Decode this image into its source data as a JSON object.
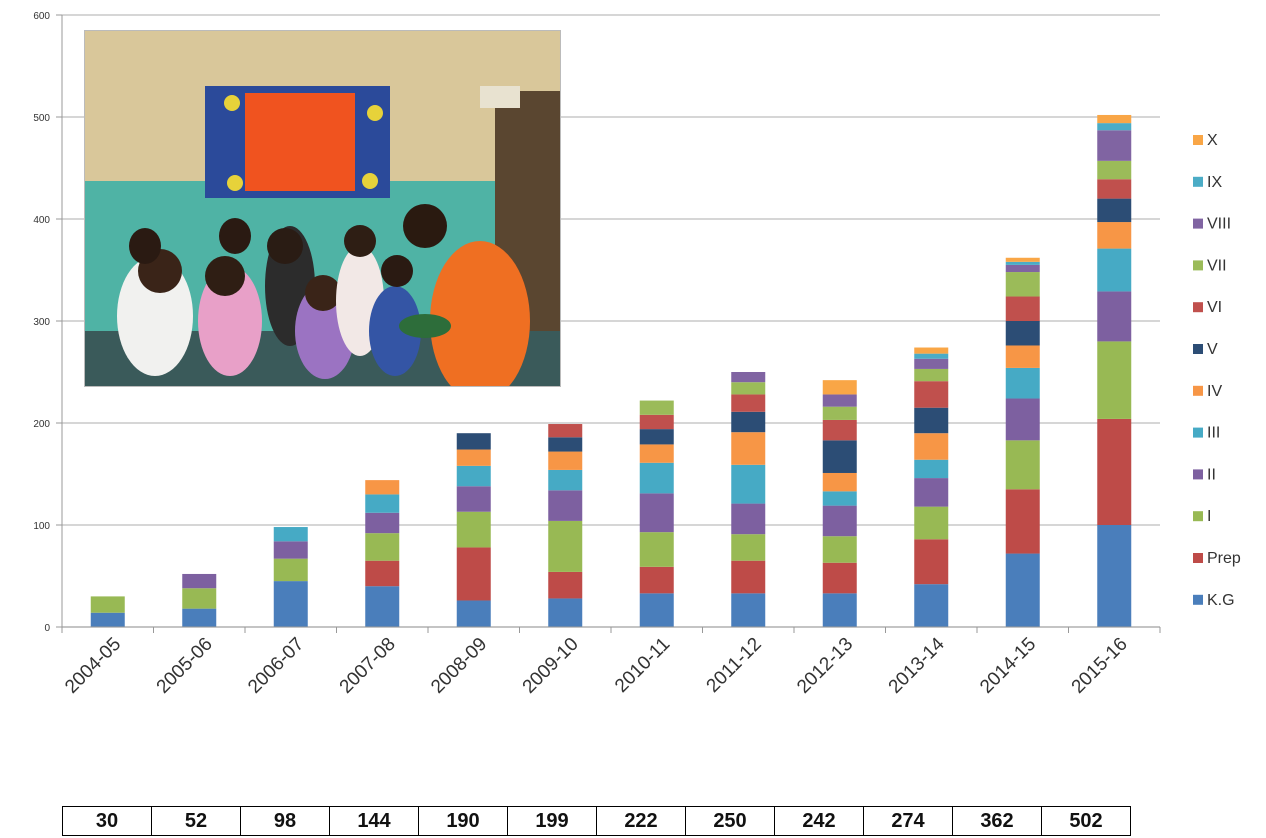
{
  "chart_data": {
    "type": "bar",
    "stacked": true,
    "title": "",
    "xlabel": "",
    "ylabel": "",
    "ylim": [
      0,
      600
    ],
    "yticks": [
      0,
      100,
      200,
      300,
      400,
      500,
      600
    ],
    "grid": true,
    "legend_position": "right",
    "categories": [
      "2004-05",
      "2005-06",
      "2006-07",
      "2007-08",
      "2008-09",
      "2009-10",
      "2010-11",
      "2011-12",
      "2012-13",
      "2013-14",
      "2014-15",
      "2015-16"
    ],
    "series": [
      {
        "name": "K.G",
        "color": "#4a7ebb",
        "values": [
          14,
          18,
          45,
          40,
          26,
          28,
          33,
          33,
          33,
          42,
          72,
          100
        ]
      },
      {
        "name": "Prep",
        "color": "#be4b48",
        "values": [
          0,
          0,
          0,
          25,
          52,
          26,
          26,
          32,
          30,
          44,
          63,
          104
        ]
      },
      {
        "name": "I",
        "color": "#98b954",
        "values": [
          16,
          20,
          22,
          27,
          35,
          50,
          34,
          26,
          26,
          32,
          48,
          76
        ]
      },
      {
        "name": "II",
        "color": "#7d60a0",
        "values": [
          0,
          14,
          17,
          20,
          25,
          30,
          38,
          30,
          30,
          28,
          41,
          49
        ]
      },
      {
        "name": "III",
        "color": "#46aac5",
        "values": [
          0,
          0,
          14,
          18,
          20,
          20,
          30,
          38,
          14,
          18,
          30,
          42
        ]
      },
      {
        "name": "IV",
        "color": "#f79646",
        "values": [
          0,
          0,
          0,
          14,
          16,
          18,
          18,
          32,
          18,
          26,
          22,
          26
        ]
      },
      {
        "name": "V",
        "color": "#2c4d75",
        "values": [
          0,
          0,
          0,
          0,
          16,
          14,
          15,
          20,
          32,
          25,
          24,
          23
        ]
      },
      {
        "name": "VI",
        "color": "#c0504d",
        "values": [
          0,
          0,
          0,
          0,
          0,
          13,
          14,
          17,
          20,
          26,
          24,
          19
        ]
      },
      {
        "name": "VII",
        "color": "#9bbb59",
        "values": [
          0,
          0,
          0,
          0,
          0,
          0,
          14,
          12,
          13,
          12,
          24,
          18
        ]
      },
      {
        "name": "VIII",
        "color": "#8064a2",
        "values": [
          0,
          0,
          0,
          0,
          0,
          0,
          0,
          10,
          12,
          10,
          7,
          30
        ]
      },
      {
        "name": "IX",
        "color": "#4bacc6",
        "values": [
          0,
          0,
          0,
          0,
          0,
          0,
          0,
          0,
          0,
          5,
          3,
          7
        ]
      },
      {
        "name": "X",
        "color": "#f9a646",
        "values": [
          0,
          0,
          0,
          0,
          0,
          0,
          0,
          0,
          14,
          6,
          4,
          8
        ]
      }
    ],
    "totals": [
      30,
      52,
      98,
      144,
      190,
      199,
      222,
      250,
      242,
      274,
      362,
      502
    ]
  },
  "photo": {
    "icon": "classroom-photo-icon"
  }
}
